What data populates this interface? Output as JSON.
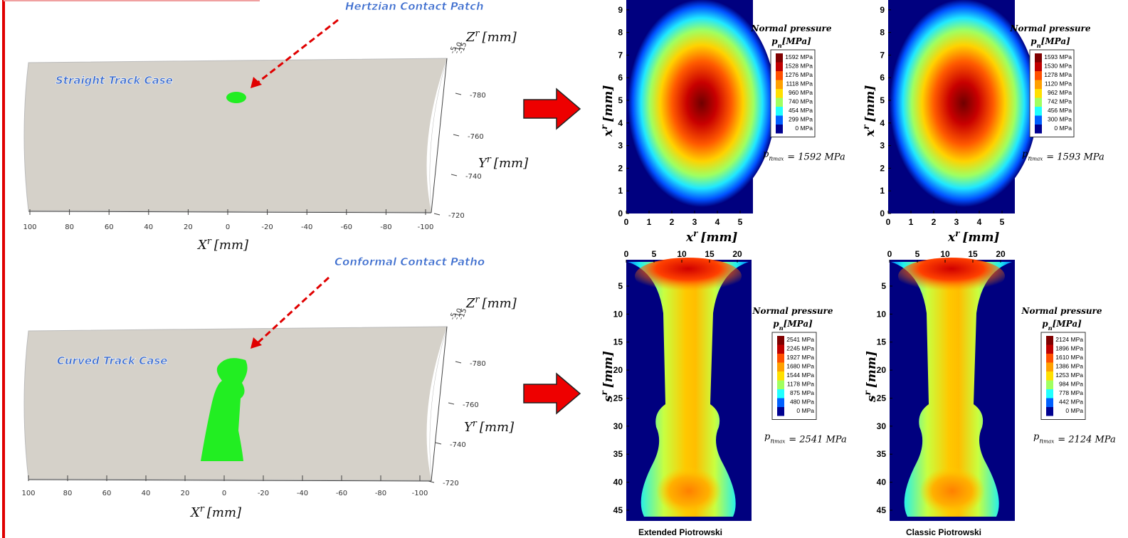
{
  "models": [
    {
      "annotation": "Hertzian Contact Patch",
      "case": "Straight Track Case",
      "x_ticks": [
        100,
        80,
        60,
        40,
        20,
        0,
        -20,
        -40,
        -60,
        -80,
        -100
      ],
      "y_ticks": [
        -780,
        -760,
        -740,
        -720
      ],
      "z_ticks": [
        -5,
        -10,
        -15
      ],
      "x_label": {
        "symbol": "X",
        "sup": "r",
        "unit": "[mm]"
      },
      "y_label": {
        "symbol": "Y",
        "sup": "r",
        "unit": "[mm]"
      },
      "z_label": {
        "symbol": "Z",
        "sup": "r",
        "unit": "[mm]"
      }
    },
    {
      "annotation": "Conformal Contact Patho",
      "case": "Curved Track Case",
      "x_ticks": [
        100,
        80,
        60,
        40,
        20,
        0,
        -20,
        -40,
        -60,
        -80,
        -100
      ],
      "y_ticks": [
        -780,
        -760,
        -740,
        -720
      ],
      "z_ticks": [
        -5,
        -10,
        -15
      ],
      "x_label": {
        "symbol": "X",
        "sup": "r",
        "unit": "[mm]"
      },
      "y_label": {
        "symbol": "Y",
        "sup": "r",
        "unit": "[mm]"
      },
      "z_label": {
        "symbol": "Z",
        "sup": "r",
        "unit": "[mm]"
      }
    }
  ],
  "maps": [
    {
      "x_ticks": [
        0,
        1,
        2,
        3,
        4,
        5
      ],
      "y_ticks": [
        0,
        1,
        2,
        3,
        4,
        5,
        6,
        7,
        8,
        9
      ],
      "x_label": {
        "symbol": "x",
        "sup": "r",
        "unit": "[mm]"
      },
      "y_label": {
        "symbol": "x",
        "sup": "r",
        "unit": "[mm]"
      },
      "legend": {
        "title": "Normal pressure",
        "unit": {
          "symbol": "p",
          "sub": "n",
          "unit": "[MPa]"
        },
        "levels": [
          "1592 MPa",
          "1528 MPa",
          "1276 MPa",
          "1118 MPa",
          "960 MPa",
          "740 MPa",
          "454 MPa",
          "299 MPa",
          "0 MPa"
        ]
      },
      "pmax": {
        "symbol": "p",
        "sub": "n",
        "subsub": "max",
        "text": "= 1592 MPa"
      }
    },
    {
      "x_ticks": [
        0,
        1,
        2,
        3,
        4,
        5
      ],
      "y_ticks": [
        0,
        1,
        2,
        3,
        4,
        5,
        6,
        7,
        8,
        9
      ],
      "x_label": {
        "symbol": "x",
        "sup": "r",
        "unit": "[mm]"
      },
      "y_label": {
        "symbol": "x",
        "sup": "r",
        "unit": "[mm]"
      },
      "legend": {
        "title": "Normal pressure",
        "unit": {
          "symbol": "p",
          "sub": "n",
          "unit": "[MPa]"
        },
        "levels": [
          "1593 MPa",
          "1530 MPa",
          "1278 MPa",
          "1120 MPa",
          "962 MPa",
          "742 MPa",
          "456 MPa",
          "300 MPa",
          "0 MPa"
        ]
      },
      "pmax": {
        "symbol": "p",
        "sub": "n",
        "subsub": "max",
        "text": "= 1593 MPa"
      }
    },
    {
      "x_ticks": [
        0,
        5,
        10,
        15,
        20
      ],
      "y_ticks": [
        5,
        10,
        15,
        20,
        25,
        30,
        35,
        40,
        45
      ],
      "y_label": {
        "symbol": "s",
        "sup": "r",
        "unit": "[mm]"
      },
      "legend": {
        "title": "Normal pressure",
        "unit": {
          "symbol": "p",
          "sub": "n",
          "unit": "[MPa]"
        },
        "levels": [
          "2541 MPa",
          "2245 MPa",
          "1927 MPa",
          "1680 MPa",
          "1544 MPa",
          "1178 MPa",
          "875 MPa",
          "480 MPa",
          "0 MPa"
        ]
      },
      "pmax": {
        "symbol": "p",
        "sub": "n",
        "subsub": "max",
        "text": "= 2541 MPa"
      },
      "caption": "Extended Piotrowski"
    },
    {
      "x_ticks": [
        0,
        5,
        10,
        15,
        20
      ],
      "y_ticks": [
        5,
        10,
        15,
        20,
        25,
        30,
        35,
        40,
        45
      ],
      "y_label": {
        "symbol": "s",
        "sup": "r",
        "unit": "[mm]"
      },
      "legend": {
        "title": "Normal pressure",
        "unit": {
          "symbol": "p",
          "sub": "n",
          "unit": "[MPa]"
        },
        "levels": [
          "2124 MPa",
          "1896 MPa",
          "1610 MPa",
          "1386 MPa",
          "1253 MPa",
          "984 MPa",
          "778 MPa",
          "442 MPa",
          "0 MPa"
        ]
      },
      "pmax": {
        "symbol": "p",
        "sub": "n",
        "subsub": "max",
        "text": "= 2124 MPa"
      },
      "caption": "Classic Piotrowski"
    }
  ]
}
